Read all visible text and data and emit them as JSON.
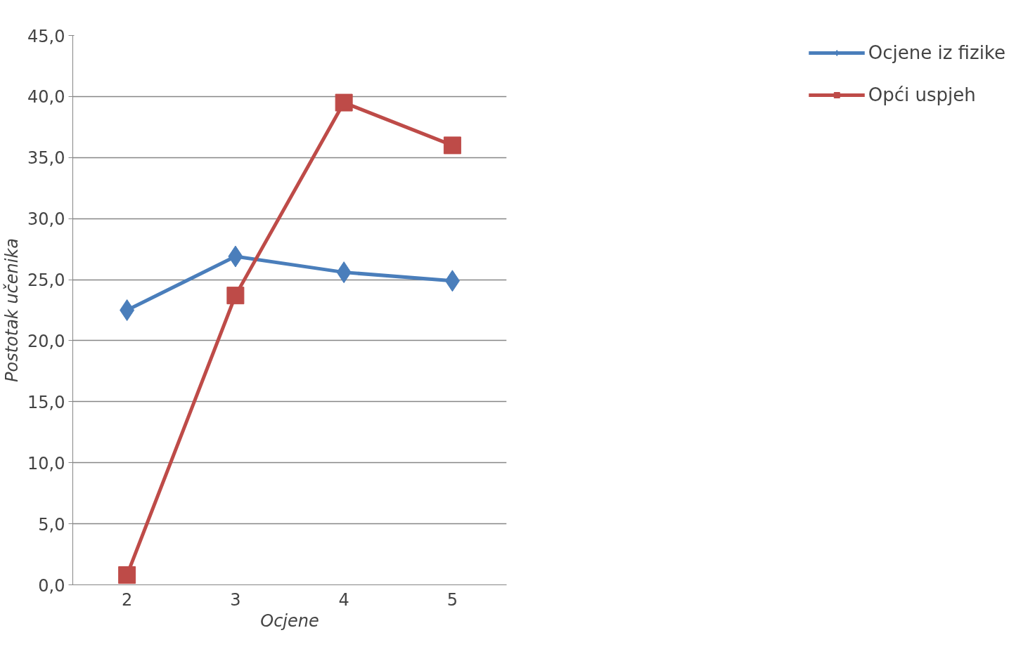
{
  "chart_data": {
    "type": "line",
    "xlabel": "Ocjene",
    "ylabel": "Postotak učenika",
    "categories": [
      "2",
      "3",
      "4",
      "5"
    ],
    "series": [
      {
        "name": "Ocjene iz fizike",
        "color": "#4a7ebb",
        "marker": "diamond",
        "values": [
          22.5,
          26.9,
          25.6,
          24.9
        ]
      },
      {
        "name": "Opći uspjeh",
        "color": "#be4b48",
        "marker": "square",
        "values": [
          0.8,
          23.7,
          39.5,
          36.0
        ]
      }
    ],
    "ylim": [
      0,
      45
    ],
    "yticks": [
      {
        "value": 0,
        "label": "0,0"
      },
      {
        "value": 5,
        "label": "5,0"
      },
      {
        "value": 10,
        "label": "10,0"
      },
      {
        "value": 15,
        "label": "15,0"
      },
      {
        "value": 20,
        "label": "20,0"
      },
      {
        "value": 25,
        "label": "25,0"
      },
      {
        "value": 30,
        "label": "30,0"
      },
      {
        "value": 35,
        "label": "35,0"
      },
      {
        "value": 40,
        "label": "40,0"
      },
      {
        "value": 45,
        "label": "45,0"
      }
    ],
    "grid": "y",
    "legend": "right",
    "line_style": "solid"
  }
}
